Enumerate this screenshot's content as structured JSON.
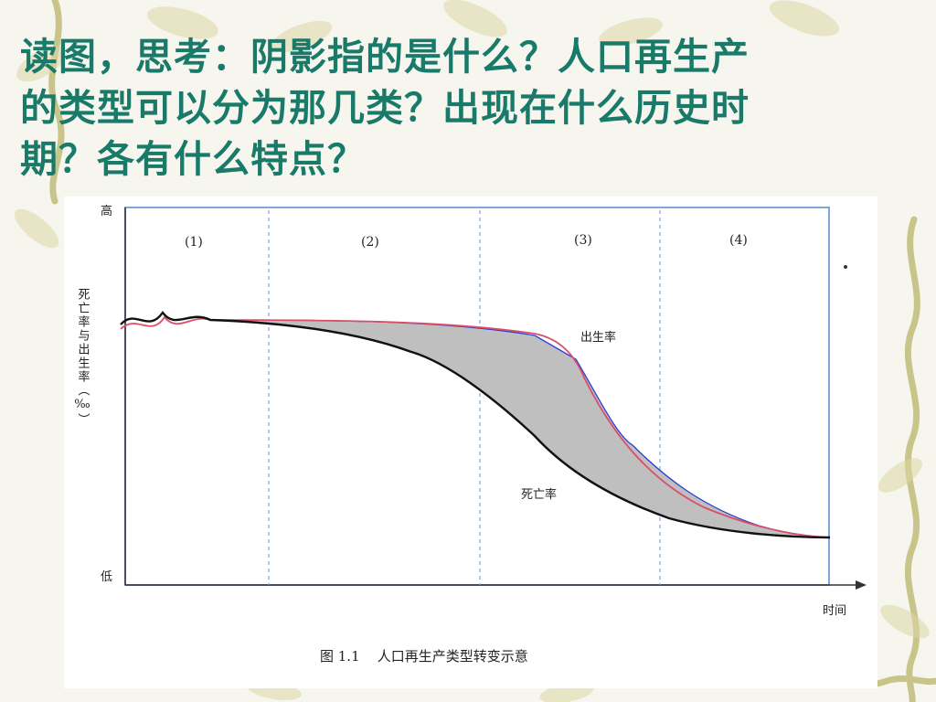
{
  "slide": {
    "title_lines": [
      "读图，思考：阴影指的是什么？人口再生产",
      "的类型可以分为那几类？出现在什么历史时",
      "期？各有什么特点？"
    ]
  },
  "diagram": {
    "y_high_label": "高",
    "y_low_label": "低",
    "y_axis_label": "死亡率与出生率（‰）",
    "x_axis_label": "时间",
    "stage_labels": [
      "(1)",
      "(2)",
      "(3)",
      "(4)"
    ],
    "birth_rate_label": "出生率",
    "death_rate_label": "死亡率",
    "caption": "图 1.1    人口再生产类型转变示意",
    "colors": {
      "shade": "#bfbfbf",
      "birth_line": "#d94f6a",
      "death_line": "#111111",
      "outline": "#2a3fd6",
      "frame": "#7fa8d8",
      "title": "#1a7a6a",
      "vine": "#c9c48a"
    }
  }
}
